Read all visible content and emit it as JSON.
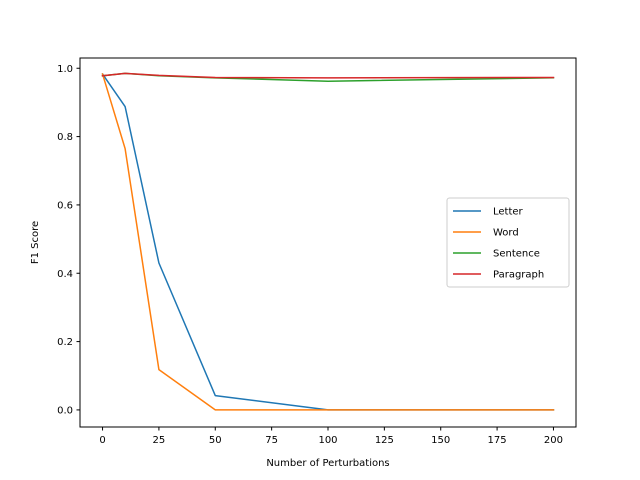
{
  "chart_data": {
    "type": "line",
    "title": "",
    "xlabel": "Number of Perturbations",
    "ylabel": "F1 Score",
    "xlim": [
      -10,
      210
    ],
    "ylim": [
      -0.05,
      1.03
    ],
    "xticks": [
      0,
      25,
      50,
      75,
      100,
      125,
      150,
      175,
      200
    ],
    "yticks": [
      0.0,
      0.2,
      0.4,
      0.6,
      0.8,
      1.0
    ],
    "xtick_labels": [
      "0",
      "25",
      "50",
      "75",
      "100",
      "125",
      "150",
      "175",
      "200"
    ],
    "ytick_labels": [
      "0.0",
      "0.2",
      "0.4",
      "0.6",
      "0.8",
      "1.0"
    ],
    "grid": false,
    "legend_position": "center-right",
    "x": [
      0,
      10,
      25,
      50,
      100,
      200
    ],
    "series": [
      {
        "name": "Letter",
        "color": "#1f77b4",
        "values": [
          0.983,
          0.888,
          0.43,
          0.042,
          0.0,
          0.0
        ]
      },
      {
        "name": "Word",
        "color": "#ff7f0e",
        "values": [
          0.983,
          0.765,
          0.118,
          0.0,
          0.0,
          0.0
        ]
      },
      {
        "name": "Sentence",
        "color": "#2ca02c",
        "values": [
          0.978,
          0.985,
          0.978,
          0.972,
          0.962,
          0.972
        ]
      },
      {
        "name": "Paragraph",
        "color": "#d62728",
        "values": [
          0.978,
          0.985,
          0.979,
          0.973,
          0.972,
          0.973
        ]
      }
    ]
  }
}
